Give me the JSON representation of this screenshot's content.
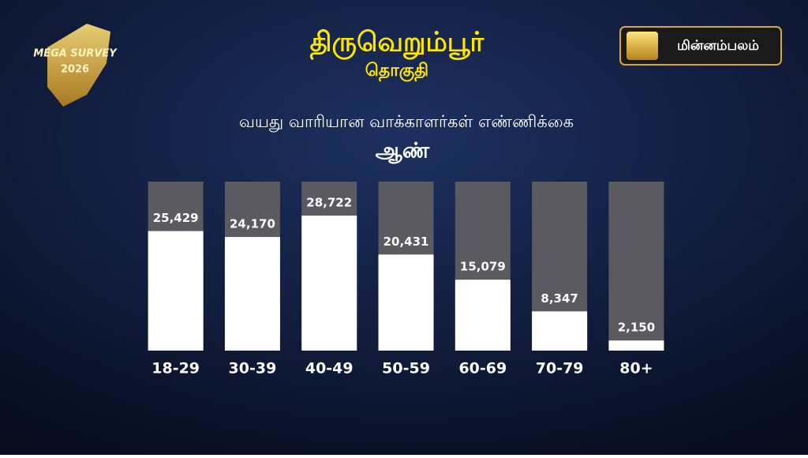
{
  "badge": {
    "text": "MEGA SURVEY",
    "year": "2026"
  },
  "brand": "மின்னம்பலம்",
  "chart_data": {
    "type": "bar",
    "title": "திருவெறும்பூர்",
    "subtitle": "தொகுதி",
    "chart_title": "வயது வாரியான வாக்காளர்கள் எண்ணிக்கை",
    "categories": [
      "18-29",
      "30-39",
      "40-49",
      "50-59",
      "60-69",
      "70-79",
      "80+"
    ],
    "series": [
      {
        "name": "ஆண்",
        "color": "#ffffff",
        "values": [
          25429,
          24170,
          28722,
          20431,
          15079,
          8347,
          2150
        ],
        "value_labels": [
          "25,429",
          "24,170",
          "28,722",
          "20,431",
          "15,079",
          "8,347",
          "2,150"
        ]
      }
    ]
  }
}
